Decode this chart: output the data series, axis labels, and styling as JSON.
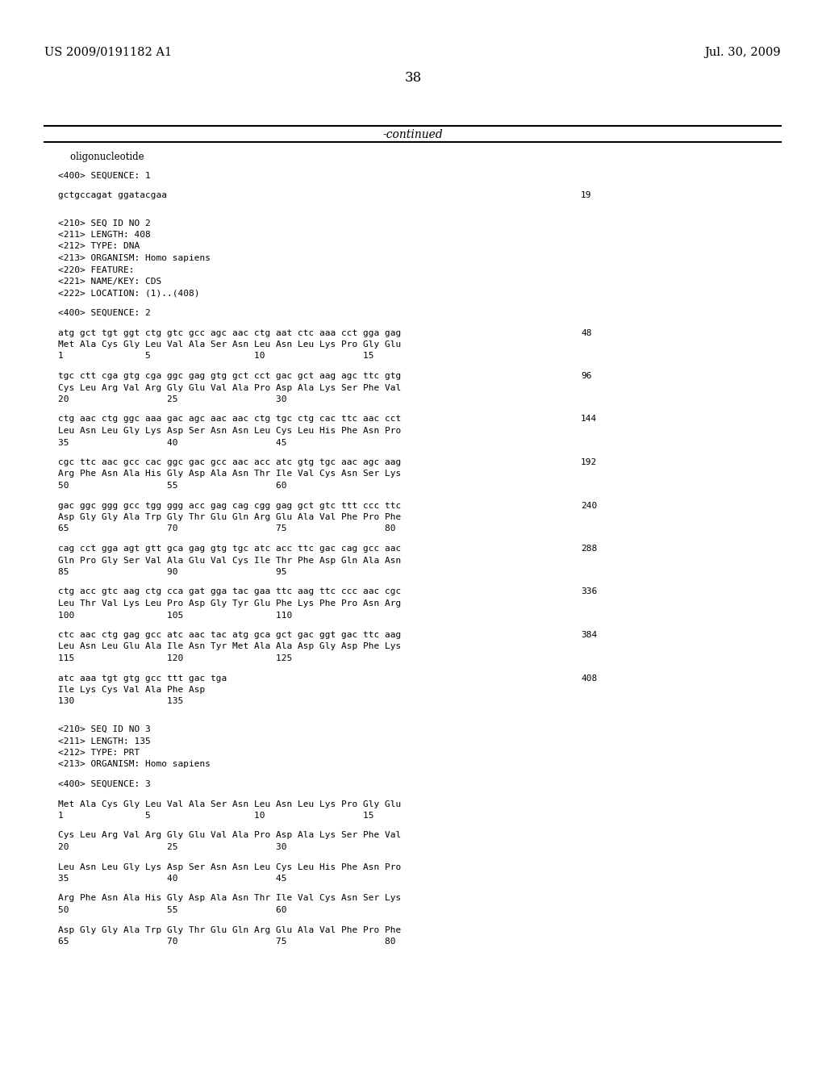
{
  "header_left": "US 2009/0191182 A1",
  "header_right": "Jul. 30, 2009",
  "page_number": "38",
  "continued_text": "-continued",
  "background_color": "#ffffff",
  "text_color": "#000000",
  "content": [
    {
      "type": "plain",
      "text": "    oligonucleotide",
      "mono": false
    },
    {
      "type": "blank"
    },
    {
      "type": "plain",
      "text": "<400> SEQUENCE: 1",
      "mono": true
    },
    {
      "type": "blank"
    },
    {
      "type": "plain",
      "text": "gctgccagat ggatacgaa",
      "mono": true,
      "right_num": "19"
    },
    {
      "type": "blank"
    },
    {
      "type": "blank"
    },
    {
      "type": "plain",
      "text": "<210> SEQ ID NO 2",
      "mono": true
    },
    {
      "type": "plain",
      "text": "<211> LENGTH: 408",
      "mono": true
    },
    {
      "type": "plain",
      "text": "<212> TYPE: DNA",
      "mono": true
    },
    {
      "type": "plain",
      "text": "<213> ORGANISM: Homo sapiens",
      "mono": true
    },
    {
      "type": "plain",
      "text": "<220> FEATURE:",
      "mono": true
    },
    {
      "type": "plain",
      "text": "<221> NAME/KEY: CDS",
      "mono": true
    },
    {
      "type": "plain",
      "text": "<222> LOCATION: (1)..(408)",
      "mono": true
    },
    {
      "type": "blank"
    },
    {
      "type": "plain",
      "text": "<400> SEQUENCE: 2",
      "mono": true
    },
    {
      "type": "blank"
    },
    {
      "type": "seq_block",
      "dna": "atg gct tgt ggt ctg gtc gcc agc aac ctg aat ctc aaa cct gga gag",
      "num": "48",
      "aa": "Met Ala Cys Gly Leu Val Ala Ser Asn Leu Asn Leu Lys Pro Gly Glu",
      "pos": "1               5                   10                  15"
    },
    {
      "type": "blank"
    },
    {
      "type": "seq_block",
      "dna": "tgc ctt cga gtg cga ggc gag gtg gct cct gac gct aag agc ttc gtg",
      "num": "96",
      "aa": "Cys Leu Arg Val Arg Gly Glu Val Ala Pro Asp Ala Lys Ser Phe Val",
      "pos": "20                  25                  30"
    },
    {
      "type": "blank"
    },
    {
      "type": "seq_block",
      "dna": "ctg aac ctg ggc aaa gac agc aac aac ctg tgc ctg cac ttc aac cct",
      "num": "144",
      "aa": "Leu Asn Leu Gly Lys Asp Ser Asn Asn Leu Cys Leu His Phe Asn Pro",
      "pos": "35                  40                  45"
    },
    {
      "type": "blank"
    },
    {
      "type": "seq_block",
      "dna": "cgc ttc aac gcc cac ggc gac gcc aac acc atc gtg tgc aac agc aag",
      "num": "192",
      "aa": "Arg Phe Asn Ala His Gly Asp Ala Asn Thr Ile Val Cys Asn Ser Lys",
      "pos": "50                  55                  60"
    },
    {
      "type": "blank"
    },
    {
      "type": "seq_block",
      "dna": "gac ggc ggg gcc tgg ggg acc gag cag cgg gag gct gtc ttt ccc ttc",
      "num": "240",
      "aa": "Asp Gly Gly Ala Trp Gly Thr Glu Gln Arg Glu Ala Val Phe Pro Phe",
      "pos": "65                  70                  75                  80"
    },
    {
      "type": "blank"
    },
    {
      "type": "seq_block",
      "dna": "cag cct gga agt gtt gca gag gtg tgc atc acc ttc gac cag gcc aac",
      "num": "288",
      "aa": "Gln Pro Gly Ser Val Ala Glu Val Cys Ile Thr Phe Asp Gln Ala Asn",
      "pos": "85                  90                  95"
    },
    {
      "type": "blank"
    },
    {
      "type": "seq_block",
      "dna": "ctg acc gtc aag ctg cca gat gga tac gaa ttc aag ttc ccc aac cgc",
      "num": "336",
      "aa": "Leu Thr Val Lys Leu Pro Asp Gly Tyr Glu Phe Lys Phe Pro Asn Arg",
      "pos": "100                 105                 110"
    },
    {
      "type": "blank"
    },
    {
      "type": "seq_block",
      "dna": "ctc aac ctg gag gcc atc aac tac atg gca gct gac ggt gac ttc aag",
      "num": "384",
      "aa": "Leu Asn Leu Glu Ala Ile Asn Tyr Met Ala Ala Asp Gly Asp Phe Lys",
      "pos": "115                 120                 125"
    },
    {
      "type": "blank"
    },
    {
      "type": "seq_block",
      "dna": "atc aaa tgt gtg gcc ttt gac tga",
      "num": "408",
      "aa": "Ile Lys Cys Val Ala Phe Asp",
      "pos": "130                 135"
    },
    {
      "type": "blank"
    },
    {
      "type": "blank"
    },
    {
      "type": "plain",
      "text": "<210> SEQ ID NO 3",
      "mono": true
    },
    {
      "type": "plain",
      "text": "<211> LENGTH: 135",
      "mono": true
    },
    {
      "type": "plain",
      "text": "<212> TYPE: PRT",
      "mono": true
    },
    {
      "type": "plain",
      "text": "<213> ORGANISM: Homo sapiens",
      "mono": true
    },
    {
      "type": "blank"
    },
    {
      "type": "plain",
      "text": "<400> SEQUENCE: 3",
      "mono": true
    },
    {
      "type": "blank"
    },
    {
      "type": "seq_block_aa",
      "aa": "Met Ala Cys Gly Leu Val Ala Ser Asn Leu Asn Leu Lys Pro Gly Glu",
      "pos": "1               5                   10                  15"
    },
    {
      "type": "blank"
    },
    {
      "type": "seq_block_aa",
      "aa": "Cys Leu Arg Val Arg Gly Glu Val Ala Pro Asp Ala Lys Ser Phe Val",
      "pos": "20                  25                  30"
    },
    {
      "type": "blank"
    },
    {
      "type": "seq_block_aa",
      "aa": "Leu Asn Leu Gly Lys Asp Ser Asn Asn Leu Cys Leu His Phe Asn Pro",
      "pos": "35                  40                  45"
    },
    {
      "type": "blank"
    },
    {
      "type": "seq_block_aa",
      "aa": "Arg Phe Asn Ala His Gly Asp Ala Asn Thr Ile Val Cys Asn Ser Lys",
      "pos": "50                  55                  60"
    },
    {
      "type": "blank"
    },
    {
      "type": "seq_block_aa",
      "aa": "Asp Gly Gly Ala Trp Gly Thr Glu Gln Arg Glu Ala Val Phe Pro Phe",
      "pos": "65                  70                  75                  80"
    }
  ]
}
